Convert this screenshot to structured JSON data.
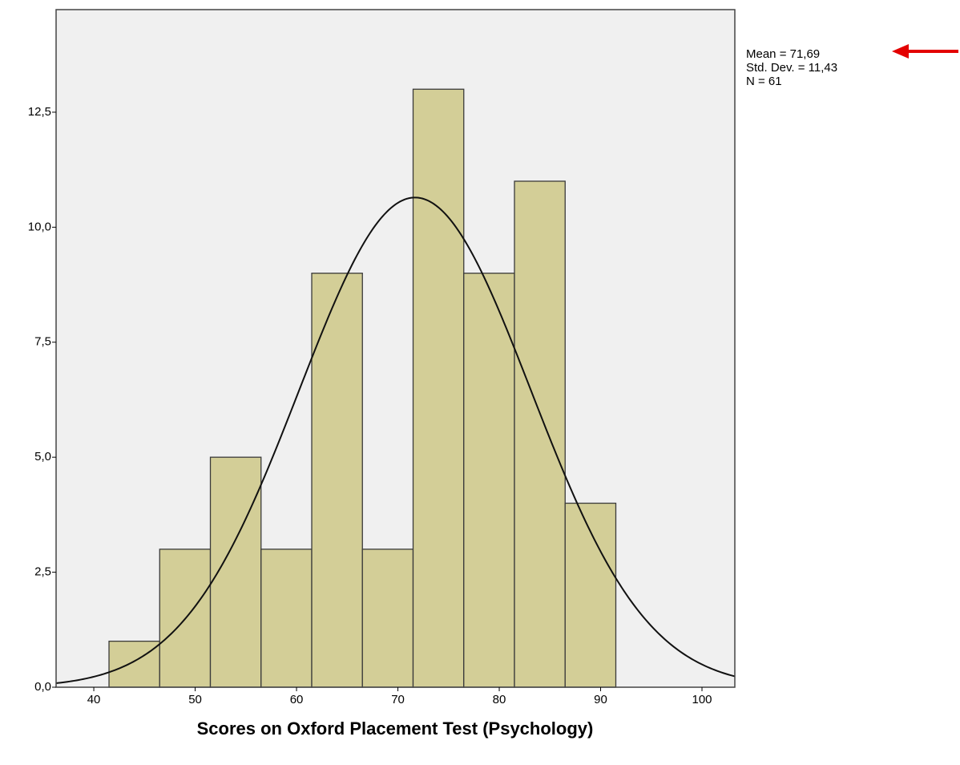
{
  "chart_data": {
    "type": "histogram",
    "x_label": "Scores on Oxford Placement Test (Psychology)",
    "bins": [
      41.5,
      46.5,
      51.5,
      56.5,
      61.5,
      66.5,
      71.5,
      76.5,
      81.5,
      86.5,
      91.5
    ],
    "counts": [
      1,
      3,
      5,
      3,
      9,
      3,
      13,
      9,
      11,
      4
    ],
    "color": "#d3ce97",
    "xlim": [
      36.28,
      103.24
    ],
    "xticks": [
      40,
      50,
      60,
      70,
      80,
      90,
      100
    ],
    "ylim": [
      0,
      14.73
    ],
    "yticks": [
      {
        "value": 0,
        "label": "0,0"
      },
      {
        "value": 2.5,
        "label": "2,5"
      },
      {
        "value": 5,
        "label": "5,0"
      },
      {
        "value": 7.5,
        "label": "7,5"
      },
      {
        "value": 10,
        "label": "10,0"
      },
      {
        "value": 12.5,
        "label": "12,5"
      }
    ],
    "normal_curve": {
      "mean": 71.69,
      "std_dev": 11.43,
      "n": 61
    },
    "annotations": [
      "Mean = 71,69",
      "Std. Dev. = 11,43",
      "N = 61"
    ]
  }
}
